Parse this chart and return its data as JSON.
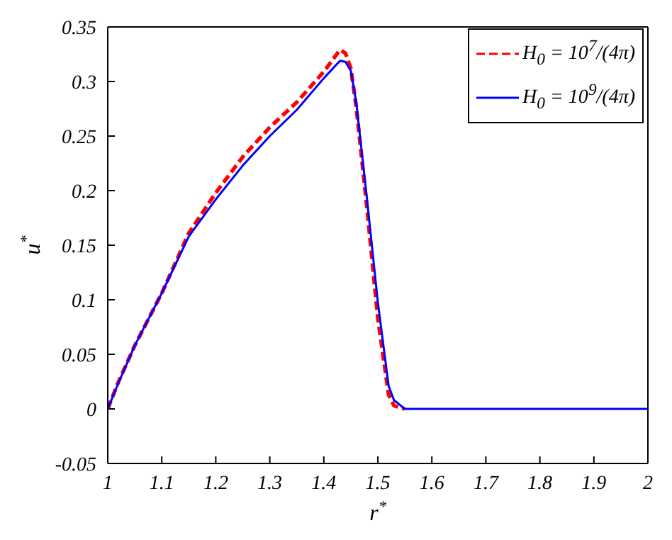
{
  "chart_data": {
    "type": "line",
    "xlabel": "r$^{*}$",
    "ylabel": "u$^{*}$",
    "xlim": [
      1,
      2
    ],
    "xticks": [
      1,
      1.1,
      1.2,
      1.3,
      1.4,
      1.5,
      1.6,
      1.7,
      1.8,
      1.9,
      2
    ],
    "ylim": [
      -0.05,
      0.35
    ],
    "yticks": [
      -0.05,
      0,
      0.05,
      0.1,
      0.15,
      0.2,
      0.25,
      0.3,
      0.35
    ],
    "grid": false,
    "legend": "top right",
    "marker": "none",
    "series": [
      {
        "name": "H$_{0}$ = 10$^{7}$/(4π)",
        "color": "#ff0000",
        "line_style": "dashed",
        "x": [
          1,
          1.02,
          1.05,
          1.1,
          1.15,
          1.2,
          1.25,
          1.3,
          1.35,
          1.4,
          1.43,
          1.44,
          1.45,
          1.46,
          1.48,
          1.5,
          1.52,
          1.53,
          1.55
        ],
        "values": [
          0,
          0.025,
          0.058,
          0.106,
          0.161,
          0.198,
          0.231,
          0.258,
          0.281,
          0.309,
          0.329,
          0.326,
          0.312,
          0.277,
          0.184,
          0.083,
          0.013,
          0.003,
          0
        ]
      },
      {
        "name": "H$_{0}$ = 10$^{9}$/(4π)",
        "color": "#0000ff",
        "line_style": "solid",
        "x": [
          1,
          1.02,
          1.05,
          1.1,
          1.15,
          1.2,
          1.25,
          1.3,
          1.35,
          1.4,
          1.43,
          1.44,
          1.45,
          1.46,
          1.48,
          1.5,
          1.52,
          1.53,
          1.55,
          1.6,
          1.8,
          2
        ],
        "values": [
          0,
          0.024,
          0.058,
          0.106,
          0.158,
          0.192,
          0.223,
          0.25,
          0.274,
          0.303,
          0.319,
          0.318,
          0.31,
          0.281,
          0.192,
          0.098,
          0.021,
          0.008,
          0,
          0,
          0,
          0
        ]
      }
    ]
  }
}
